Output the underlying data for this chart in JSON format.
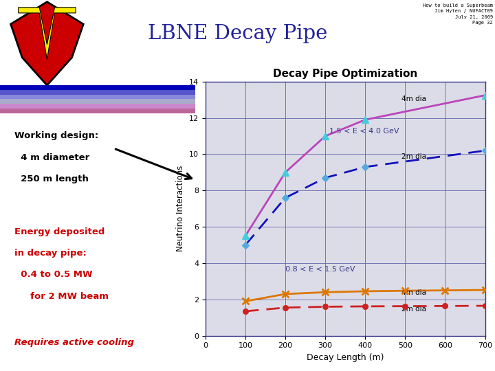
{
  "title": "LBNE Decay Pipe",
  "chart_title": "Decay Pipe Optimization",
  "xlabel": "Decay Length (m)",
  "ylabel": "Neutrino Interactions",
  "xlim": [
    0,
    700
  ],
  "ylim": [
    0,
    14
  ],
  "xticks": [
    0,
    100,
    200,
    300,
    400,
    500,
    600,
    700
  ],
  "yticks": [
    0,
    2,
    4,
    6,
    8,
    10,
    12,
    14
  ],
  "bg_color": "#dcdce8",
  "slide_bg": "#ffffff",
  "header_text": "How to build a Superbeam\nJim Hylen / NUFACT09\nJuly 21, 2009\nPage 32",
  "working_design_text_lines": [
    "Working design:",
    "  4 m diameter",
    "  250 m length"
  ],
  "energy_text_lines": [
    "Energy deposited",
    "in decay pipe:",
    "  0.4 to 0.5 MW",
    "     for 2 MW beam"
  ],
  "cooling_text": "Requires active cooling",
  "label_high_energy": "1.5 < E < 4.0 GeV",
  "label_low_energy": "0.8 < E < 1.5 GeV",
  "series": {
    "high_4m": {
      "x": [
        100,
        200,
        300,
        400,
        700
      ],
      "y": [
        5.5,
        9.0,
        11.0,
        11.9,
        13.25
      ],
      "color": "#bb44bb",
      "linestyle": "solid",
      "marker": "^",
      "marker_color": "#44ccdd",
      "linewidth": 2.0
    },
    "high_2m": {
      "x": [
        100,
        200,
        300,
        400,
        700
      ],
      "y": [
        5.0,
        7.6,
        8.7,
        9.3,
        10.2
      ],
      "color": "#1111bb",
      "linestyle": "dashed",
      "marker": "D",
      "marker_color": "#55aadd",
      "linewidth": 2.0
    },
    "low_4m": {
      "x": [
        100,
        200,
        300,
        400,
        500,
        600,
        700
      ],
      "y": [
        1.9,
        2.3,
        2.4,
        2.45,
        2.48,
        2.5,
        2.52
      ],
      "color": "#dd7700",
      "linestyle": "solid",
      "marker": "x",
      "marker_color": "#dd7700",
      "linewidth": 2.0
    },
    "low_2m": {
      "x": [
        100,
        200,
        300,
        400,
        500,
        600,
        700
      ],
      "y": [
        1.35,
        1.55,
        1.6,
        1.62,
        1.63,
        1.64,
        1.65
      ],
      "color": "#cc2222",
      "linestyle": "dashed",
      "marker": "o",
      "marker_color": "#cc2222",
      "linewidth": 2.0
    }
  },
  "stripe_colors": [
    "#0000bb",
    "#5555cc",
    "#8888dd",
    "#aaaacc",
    "#cc88cc",
    "#bb6699"
  ],
  "logo_outer": "#cc0000",
  "logo_inner": "#ffee00",
  "logo_outline": "#000000"
}
